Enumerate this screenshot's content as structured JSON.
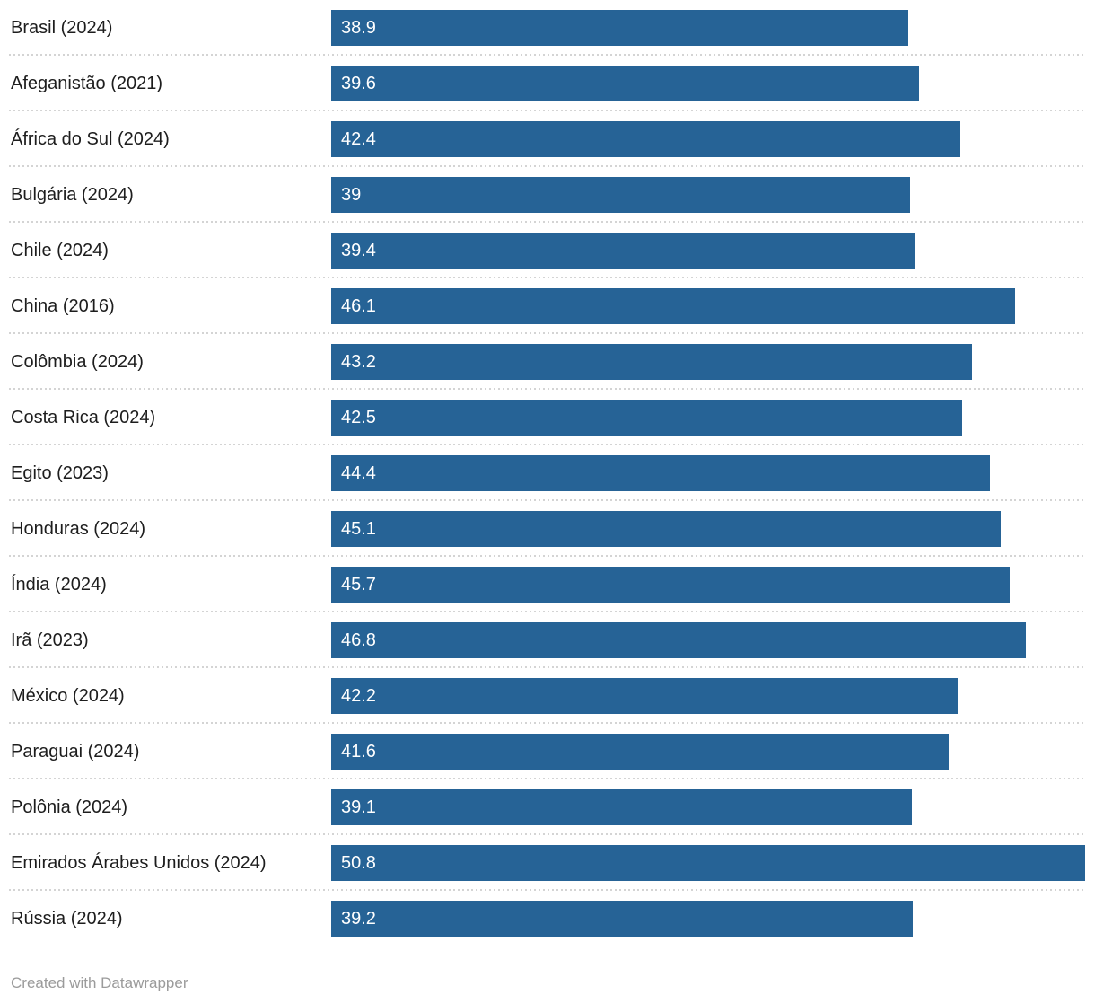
{
  "chart_data": {
    "type": "bar",
    "orientation": "horizontal",
    "categories": [
      "Brasil (2024)",
      "Afeganistão (2021)",
      "África do Sul (2024)",
      "Bulgária (2024)",
      "Chile (2024)",
      "China (2016)",
      "Colômbia (2024)",
      "Costa Rica (2024)",
      "Egito (2023)",
      "Honduras (2024)",
      "Índia (2024)",
      "Irã (2023)",
      "México (2024)",
      "Paraguai (2024)",
      "Polônia (2024)",
      "Emirados Árabes Unidos (2024)",
      "Rússia (2024)"
    ],
    "values": [
      38.9,
      39.6,
      42.4,
      39,
      39.4,
      46.1,
      43.2,
      42.5,
      44.4,
      45.1,
      45.7,
      46.8,
      42.2,
      41.6,
      39.1,
      50.8,
      39.2
    ],
    "value_labels": [
      "38.9",
      "39.6",
      "42.4",
      "39",
      "39.4",
      "46.1",
      "43.2",
      "42.5",
      "44.4",
      "45.1",
      "45.7",
      "46.8",
      "42.2",
      "41.6",
      "39.1",
      "50.8",
      "39.2"
    ],
    "title": "",
    "xlabel": "",
    "ylabel": "",
    "xlim": [
      0,
      50.8
    ],
    "grid": false,
    "legend": "none",
    "bar_color": "#266396",
    "value_label_color": "#ffffff",
    "separator_color": "#d4d4d4"
  },
  "footer": {
    "attribution": "Created with Datawrapper"
  }
}
